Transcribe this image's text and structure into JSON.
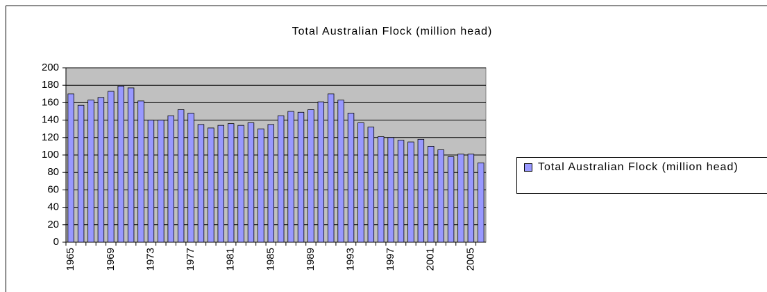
{
  "chart_data": {
    "type": "bar",
    "title": "Total Australian Flock (million head)",
    "categories": [
      "1965",
      null,
      null,
      null,
      "1969",
      null,
      null,
      null,
      "1973",
      null,
      null,
      null,
      "1977",
      null,
      null,
      null,
      "1981",
      null,
      null,
      null,
      "1985",
      null,
      null,
      null,
      "1989",
      null,
      null,
      null,
      "1993",
      null,
      null,
      null,
      "1997",
      null,
      null,
      null,
      "2001",
      null,
      null,
      null,
      "2005",
      null
    ],
    "series": [
      {
        "name": "Total Australian Flock (million head)",
        "color": "#9999ff",
        "values": [
          170,
          157,
          163,
          166,
          173,
          179,
          177,
          162,
          140,
          140,
          145,
          152,
          148,
          135,
          131,
          134,
          136,
          134,
          137,
          130,
          135,
          145,
          150,
          149,
          152,
          161,
          170,
          163,
          148,
          137,
          132,
          121,
          120,
          117,
          115,
          118,
          110,
          106,
          98,
          101,
          101,
          91
        ]
      }
    ],
    "ylim": [
      0,
      200
    ],
    "yticks": [
      0,
      20,
      40,
      60,
      80,
      100,
      120,
      140,
      160,
      180,
      200
    ],
    "grid": true,
    "legend": "right"
  }
}
